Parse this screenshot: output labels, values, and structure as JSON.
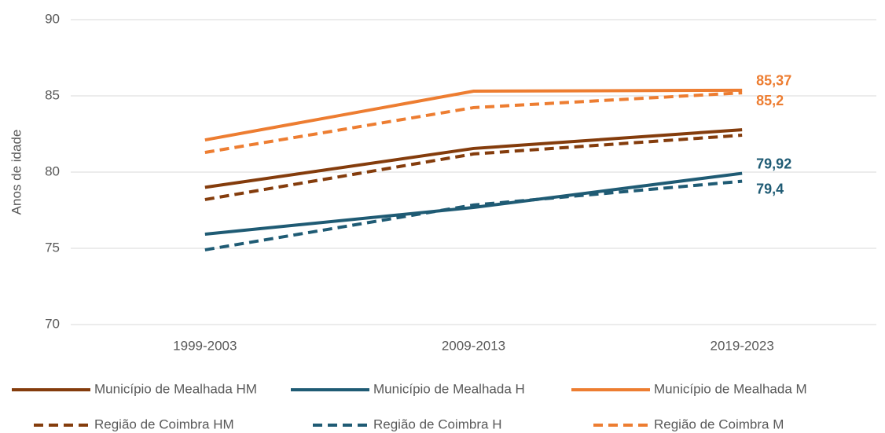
{
  "chart_data": {
    "type": "line",
    "y_label": "Anos de idade",
    "categories": [
      "1999-2003",
      "2009-2013",
      "2019-2023"
    ],
    "ylim": [
      70,
      90
    ],
    "yticks": [
      70,
      75,
      80,
      85,
      90
    ],
    "grid": true,
    "legend": "bottom",
    "series": [
      {
        "name": "Município de Mealhada HM",
        "color": "#843c0c",
        "line_style": "solid",
        "values": [
          79.0,
          81.55,
          82.78
        ]
      },
      {
        "name": "Município de Mealhada H",
        "color": "#1f5b74",
        "line_style": "solid",
        "values": [
          75.93,
          77.68,
          79.92
        ],
        "value_labels": [
          null,
          null,
          "79,92"
        ]
      },
      {
        "name": "Município de Mealhada M",
        "color": "#ed7d31",
        "line_style": "solid",
        "values": [
          82.11,
          85.31,
          85.37
        ],
        "value_labels": [
          null,
          null,
          "85,37"
        ]
      },
      {
        "name": "Região de Coimbra HM",
        "color": "#843c0c",
        "line_style": "dashed",
        "values": [
          78.2,
          81.19,
          82.42
        ]
      },
      {
        "name": "Região de Coimbra H",
        "color": "#1f5b74",
        "line_style": "dashed",
        "values": [
          74.9,
          77.84,
          79.4
        ],
        "value_labels": [
          null,
          null,
          "79,4"
        ]
      },
      {
        "name": "Região de Coimbra M",
        "color": "#ed7d31",
        "line_style": "dashed",
        "values": [
          81.29,
          84.23,
          85.2
        ],
        "value_labels": [
          null,
          null,
          "85,2"
        ]
      }
    ]
  }
}
